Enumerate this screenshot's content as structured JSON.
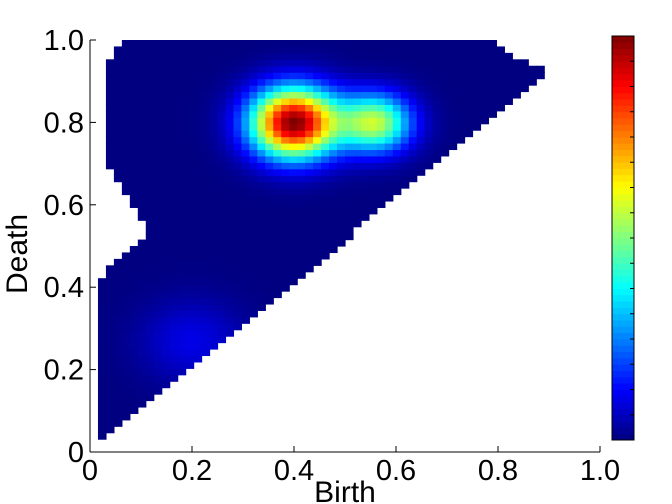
{
  "chart_data": {
    "type": "heatmap",
    "title": "",
    "xlabel": "Birth",
    "ylabel": "Death",
    "xlim": [
      0,
      1
    ],
    "ylim": [
      0,
      1
    ],
    "x_ticks": [
      0,
      0.2,
      0.4,
      0.6,
      0.8,
      1.0
    ],
    "x_tick_labels": [
      "0",
      "0.2",
      "0.4",
      "0.6",
      "0.8",
      "1.0"
    ],
    "y_ticks": [
      0,
      0.2,
      0.4,
      0.6,
      0.8,
      1.0
    ],
    "y_tick_labels": [
      "0",
      "0.2",
      "0.4",
      "0.6",
      "0.8",
      "1.0"
    ],
    "grid": false,
    "colormap": "jet",
    "colorbar": {
      "location": "right",
      "range": [
        0,
        1
      ],
      "labels_shown": false
    },
    "support_region": {
      "description_points": [
        [
          0.02,
          0.03
        ],
        [
          0.9,
          0.92
        ],
        [
          0.87,
          0.94
        ],
        [
          0.81,
          0.97
        ],
        [
          0.79,
          1.0
        ],
        [
          0.08,
          1.0
        ],
        [
          0.04,
          0.98
        ],
        [
          0.03,
          0.7
        ],
        [
          0.08,
          0.6
        ],
        [
          0.12,
          0.53
        ],
        [
          0.04,
          0.45
        ],
        [
          0.02,
          0.42
        ]
      ]
    },
    "hotspots": [
      {
        "x": 0.4,
        "y": 0.8,
        "value": 1.0
      },
      {
        "x": 0.56,
        "y": 0.8,
        "value": 0.55
      },
      {
        "x": 0.2,
        "y": 0.27,
        "value": 0.1
      }
    ]
  }
}
